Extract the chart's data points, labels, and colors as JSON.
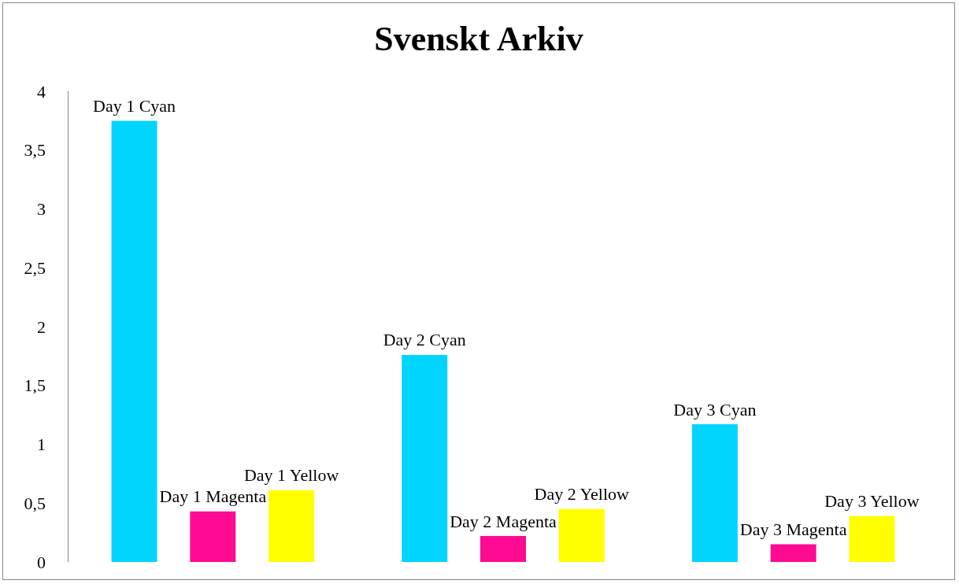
{
  "chart_data": {
    "type": "bar",
    "title": "Svenskt Arkiv",
    "categories": [
      null,
      null,
      null
    ],
    "series": [
      {
        "color": "#00d4ff",
        "values": [
          3.75,
          1.76,
          1.17
        ],
        "value_labels": [
          "Day 1 Cyan",
          "Day 2 Cyan",
          "Day 3 Cyan"
        ]
      },
      {
        "color": "#ff0a93",
        "values": [
          0.43,
          0.22,
          0.15
        ],
        "value_labels": [
          "Day 1 Magenta",
          "Day 2 Magenta",
          "Day 3 Magenta"
        ]
      },
      {
        "color": "#ffff00",
        "values": [
          0.61,
          0.45,
          0.39
        ],
        "value_labels": [
          "Day 1 Yellow",
          "Day 2 Yellow",
          "Day 3 Yellow"
        ]
      }
    ],
    "ylim": [
      0,
      4
    ],
    "yticks": [
      0,
      {
        "value": 0.5,
        "label": "0,5"
      },
      1,
      {
        "value": 1.5,
        "label": "1,5"
      },
      2,
      {
        "value": 2.5,
        "label": "2,5"
      },
      3,
      {
        "value": 3.5,
        "label": "3,5"
      },
      4
    ],
    "grid": false
  }
}
